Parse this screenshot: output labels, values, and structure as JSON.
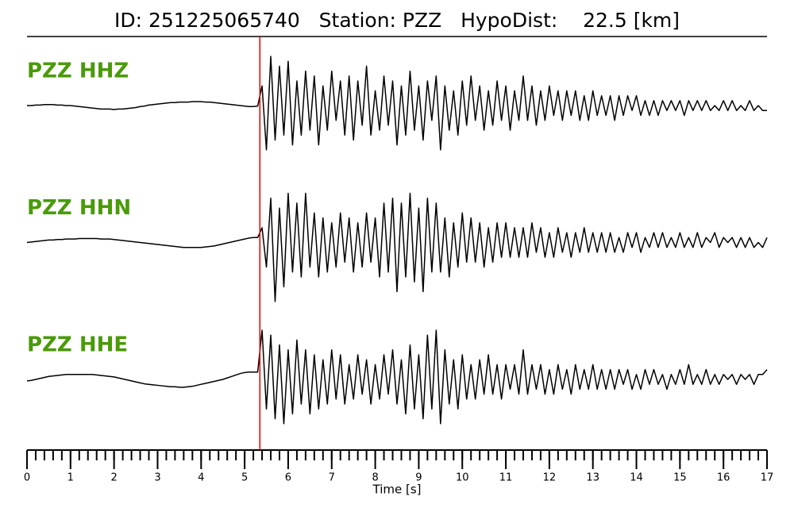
{
  "chart_data": {
    "type": "line",
    "title": "ID: 251225065740   Station: PZZ   HypoDist:    22.5 [km]",
    "xlabel": "Time [s]",
    "xlim": [
      0,
      17
    ],
    "xticks": [
      0,
      1,
      2,
      3,
      4,
      5,
      6,
      7,
      8,
      9,
      10,
      11,
      12,
      13,
      14,
      15,
      16,
      17
    ],
    "minor_tick_step": 0.2,
    "ylim": [
      -1,
      1
    ],
    "label_color": "#4a9a0a",
    "pick": {
      "x": 5.35,
      "color": "#e00000"
    },
    "x": [
      0,
      0.1,
      0.2,
      0.3,
      0.4,
      0.5,
      0.6,
      0.7,
      0.8,
      0.9,
      1,
      1.1,
      1.2,
      1.3,
      1.4,
      1.5,
      1.6,
      1.7,
      1.8,
      1.9,
      2,
      2.1,
      2.2,
      2.3,
      2.4,
      2.5,
      2.6,
      2.7,
      2.8,
      2.9,
      3,
      3.1,
      3.2,
      3.3,
      3.4,
      3.5,
      3.6,
      3.7,
      3.8,
      3.9,
      4,
      4.1,
      4.2,
      4.3,
      4.4,
      4.5,
      4.6,
      4.7,
      4.8,
      4.9,
      5,
      5.1,
      5.2,
      5.3,
      5.4,
      5.5,
      5.6,
      5.7,
      5.8,
      5.9,
      6,
      6.1,
      6.2,
      6.3,
      6.4,
      6.5,
      6.6,
      6.7,
      6.8,
      6.9,
      7,
      7.1,
      7.2,
      7.3,
      7.4,
      7.5,
      7.6,
      7.7,
      7.8,
      7.9,
      8,
      8.1,
      8.2,
      8.3,
      8.4,
      8.5,
      8.6,
      8.7,
      8.8,
      8.9,
      9,
      9.1,
      9.2,
      9.3,
      9.4,
      9.5,
      9.6,
      9.7,
      9.8,
      9.9,
      10,
      10.1,
      10.2,
      10.3,
      10.4,
      10.5,
      10.6,
      10.7,
      10.8,
      10.9,
      11,
      11.1,
      11.2,
      11.3,
      11.4,
      11.5,
      11.6,
      11.7,
      11.8,
      11.9,
      12,
      12.1,
      12.2,
      12.3,
      12.4,
      12.5,
      12.6,
      12.7,
      12.8,
      12.9,
      13,
      13.1,
      13.2,
      13.3,
      13.4,
      13.5,
      13.6,
      13.7,
      13.8,
      13.9,
      14,
      14.1,
      14.2,
      14.3,
      14.4,
      14.5,
      14.6,
      14.7,
      14.8,
      14.9,
      15,
      15.1,
      15.2,
      15.3,
      15.4,
      15.5,
      15.6,
      15.7,
      15.8,
      15.9,
      16,
      16.1,
      16.2,
      16.3,
      16.4,
      16.5,
      16.6,
      16.7,
      16.8,
      16.9,
      17
    ],
    "series": [
      {
        "name": "PZZ HHZ",
        "color": "#000000",
        "values": [
          0,
          0,
          0.01,
          0.01,
          0.02,
          0.02,
          0.02,
          0.01,
          0.01,
          0,
          0,
          -0.01,
          -0.02,
          -0.03,
          -0.04,
          -0.05,
          -0.06,
          -0.07,
          -0.07,
          -0.07,
          -0.08,
          -0.07,
          -0.07,
          -0.06,
          -0.05,
          -0.04,
          -0.02,
          -0.01,
          0.01,
          0.02,
          0.03,
          0.04,
          0.05,
          0.06,
          0.06,
          0.07,
          0.07,
          0.07,
          0.08,
          0.08,
          0.08,
          0.07,
          0.07,
          0.06,
          0.05,
          0.04,
          0.03,
          0.02,
          0.01,
          0,
          -0.01,
          -0.02,
          -0.02,
          -0.01,
          0.4,
          -0.9,
          1.0,
          -0.7,
          0.8,
          -0.6,
          0.9,
          -0.8,
          0.5,
          -0.6,
          0.7,
          -0.5,
          0.6,
          -0.8,
          0.4,
          -0.5,
          0.7,
          -0.3,
          0.5,
          -0.6,
          0.6,
          -0.7,
          0.5,
          -0.4,
          0.8,
          -0.6,
          0.3,
          -0.5,
          0.6,
          -0.4,
          0.5,
          -0.8,
          0.4,
          -0.6,
          0.7,
          -0.5,
          0.4,
          -0.7,
          0.5,
          -0.3,
          0.6,
          -0.9,
          0.4,
          -0.5,
          0.3,
          -0.6,
          0.5,
          -0.4,
          0.6,
          -0.3,
          0.4,
          -0.5,
          0.3,
          -0.4,
          0.5,
          -0.3,
          0.4,
          -0.5,
          0.3,
          -0.3,
          0.6,
          -0.3,
          0.4,
          -0.4,
          0.3,
          -0.3,
          0.4,
          -0.2,
          0.3,
          -0.3,
          0.3,
          -0.2,
          0.3,
          -0.3,
          0.2,
          -0.3,
          0.3,
          -0.2,
          0.2,
          -0.2,
          0.2,
          -0.3,
          0.2,
          -0.2,
          0.2,
          -0.1,
          0.2,
          -0.2,
          0.1,
          -0.2,
          0.1,
          -0.2,
          0.1,
          -0.1,
          0.1,
          -0.1,
          0.1,
          -0.2,
          0.1,
          -0.1,
          0.1,
          -0.1,
          0.1,
          -0.1,
          0.0,
          -0.1,
          0.1,
          -0.1,
          0.1,
          -0.1,
          0.0,
          -0.1,
          0.1,
          -0.1,
          0.0,
          -0.1,
          -0.1
        ]
      },
      {
        "name": "PZZ HHN",
        "color": "#000000",
        "values": [
          0,
          0.01,
          0.02,
          0.03,
          0.04,
          0.05,
          0.05,
          0.06,
          0.06,
          0.07,
          0.07,
          0.07,
          0.08,
          0.08,
          0.08,
          0.08,
          0.08,
          0.07,
          0.07,
          0.07,
          0.06,
          0.05,
          0.04,
          0.03,
          0.02,
          0.01,
          0,
          -0.01,
          -0.02,
          -0.03,
          -0.04,
          -0.05,
          -0.06,
          -0.07,
          -0.08,
          -0.09,
          -0.1,
          -0.1,
          -0.1,
          -0.1,
          -0.1,
          -0.09,
          -0.08,
          -0.07,
          -0.05,
          -0.03,
          -0.01,
          0.01,
          0.03,
          0.05,
          0.07,
          0.09,
          0.1,
          0.1,
          0.3,
          -0.5,
          0.9,
          -1.2,
          0.7,
          -0.9,
          1.0,
          -0.6,
          0.8,
          -0.7,
          1.0,
          -0.5,
          0.6,
          -0.7,
          0.5,
          -0.6,
          0.4,
          -0.5,
          0.6,
          -0.4,
          0.5,
          -0.6,
          0.4,
          -0.5,
          0.6,
          -0.4,
          0.5,
          -0.7,
          0.8,
          -0.6,
          0.9,
          -1.0,
          0.8,
          -0.7,
          1.0,
          -0.8,
          0.7,
          -1.0,
          0.9,
          -0.6,
          0.8,
          -0.6,
          0.5,
          -0.7,
          0.4,
          -0.5,
          0.6,
          -0.4,
          0.5,
          -0.4,
          0.4,
          -0.5,
          0.3,
          -0.4,
          0.4,
          -0.3,
          0.4,
          -0.3,
          0.3,
          -0.3,
          0.3,
          -0.3,
          0.4,
          -0.2,
          0.3,
          -0.3,
          0.2,
          -0.3,
          0.3,
          -0.2,
          0.2,
          -0.3,
          0.2,
          -0.2,
          0.3,
          -0.2,
          0.2,
          -0.2,
          0.2,
          -0.2,
          0.2,
          -0.2,
          0.1,
          -0.2,
          0.2,
          -0.1,
          0.2,
          -0.2,
          0.1,
          -0.1,
          0.2,
          -0.1,
          0.2,
          -0.1,
          0.1,
          -0.1,
          0.2,
          -0.1,
          0.1,
          -0.1,
          0.2,
          -0.1,
          0.1,
          0.0,
          0.2,
          -0.1,
          0.1,
          0.0,
          0.1,
          -0.1,
          0.1,
          -0.1,
          0.1,
          -0.1,
          0.0,
          -0.1,
          0.1
        ]
      },
      {
        "name": "PZZ HHE",
        "color": "#000000",
        "values": [
          -0.03,
          -0.02,
          0,
          0.02,
          0.04,
          0.06,
          0.07,
          0.08,
          0.09,
          0.1,
          0.1,
          0.1,
          0.1,
          0.1,
          0.1,
          0.1,
          0.09,
          0.08,
          0.07,
          0.06,
          0.05,
          0.03,
          0.01,
          -0.01,
          -0.03,
          -0.05,
          -0.07,
          -0.09,
          -0.1,
          -0.11,
          -0.12,
          -0.13,
          -0.14,
          -0.15,
          -0.15,
          -0.16,
          -0.16,
          -0.15,
          -0.14,
          -0.12,
          -0.1,
          -0.08,
          -0.06,
          -0.04,
          -0.02,
          0,
          0.03,
          0.06,
          0.09,
          0.12,
          0.14,
          0.15,
          0.15,
          0.15,
          1.0,
          -0.6,
          0.9,
          -0.8,
          0.7,
          -0.9,
          0.6,
          -0.7,
          0.8,
          -0.5,
          0.6,
          -0.7,
          0.5,
          -0.6,
          0.4,
          -0.5,
          0.6,
          -0.4,
          0.5,
          -0.5,
          0.3,
          -0.4,
          0.5,
          -0.3,
          0.4,
          -0.5,
          0.3,
          -0.4,
          0.5,
          -0.3,
          0.6,
          -0.5,
          0.4,
          -0.7,
          0.7,
          -0.6,
          0.5,
          -0.8,
          0.9,
          -0.6,
          1.0,
          -0.9,
          0.6,
          -0.5,
          0.4,
          -0.6,
          0.5,
          -0.4,
          0.3,
          -0.4,
          0.4,
          -0.3,
          0.5,
          -0.3,
          0.3,
          -0.4,
          0.3,
          -0.2,
          0.3,
          -0.3,
          0.6,
          -0.3,
          0.3,
          -0.2,
          0.3,
          -0.3,
          0.2,
          -0.3,
          0.3,
          -0.2,
          0.2,
          -0.3,
          0.3,
          -0.2,
          0.2,
          -0.2,
          0.3,
          -0.2,
          0.2,
          -0.2,
          0.2,
          -0.2,
          0.2,
          -0.1,
          0.2,
          -0.2,
          0.1,
          -0.2,
          0.2,
          -0.1,
          0.2,
          -0.1,
          0.1,
          -0.2,
          0.1,
          -0.1,
          0.2,
          -0.1,
          0.3,
          -0.1,
          0.1,
          -0.1,
          0.2,
          -0.1,
          0.1,
          -0.1,
          0.1,
          0.0,
          0.1,
          -0.1,
          0.1,
          0.0,
          0.1,
          -0.1,
          0.1,
          0.1,
          0.2
        ]
      }
    ]
  }
}
